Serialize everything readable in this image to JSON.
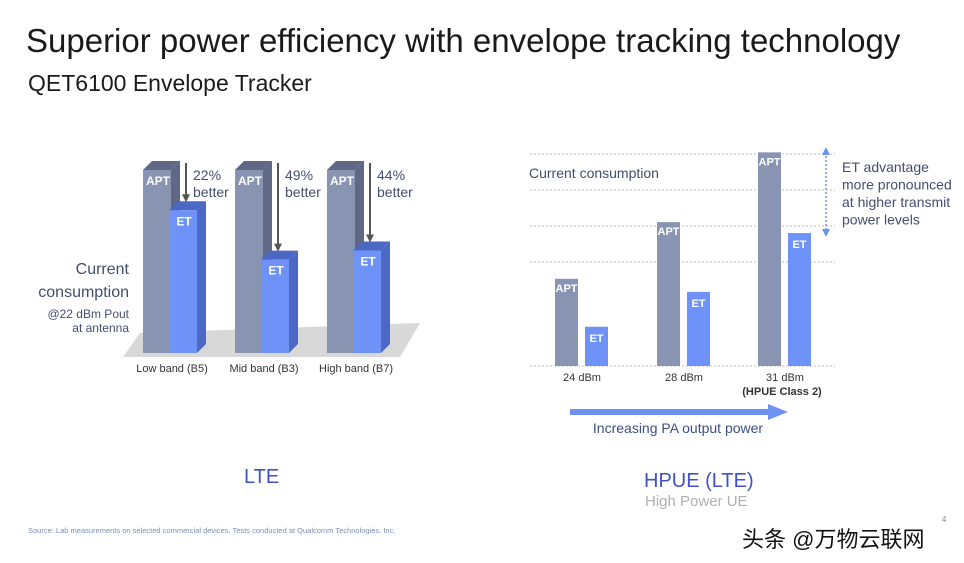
{
  "header": {
    "title": "Superior power efficiency with envelope tracking technology",
    "subtitle": "QET6100 Envelope Tracker"
  },
  "page_number": "4",
  "footer": {
    "source": "Source: Lab measurements on selected commercial devices. Tests conducted at Qualcomm Technologies, Inc.",
    "watermark": "头条 @万物云联网"
  },
  "colors": {
    "apt_front": "#8993b2",
    "apt_side": "#5f6985",
    "et_front": "#6e92f8",
    "et_side": "#4a68c4",
    "label_blue": "#3f52c8",
    "arrow_blue": "#6e92f0"
  },
  "chart_data": [
    {
      "type": "bar",
      "title": "LTE",
      "ylabel": "Current consumption",
      "ylabel_note": "@22 dBm Pout at antenna",
      "categories": [
        "Low band (B5)",
        "Mid band (B3)",
        "High band (B7)"
      ],
      "series": [
        {
          "name": "APT",
          "values": [
            100,
            100,
            100
          ]
        },
        {
          "name": "ET",
          "values": [
            78,
            51,
            56
          ]
        }
      ],
      "annotations": [
        {
          "pct": "22%",
          "text": "better"
        },
        {
          "pct": "49%",
          "text": "better"
        },
        {
          "pct": "44%",
          "text": "better"
        }
      ],
      "ylim": [
        0,
        100
      ]
    },
    {
      "type": "bar",
      "title": "HPUE (LTE)",
      "subtitle": "High Power UE",
      "ylabel": "Current consumption",
      "categories": [
        "24 dBm",
        "28 dBm",
        "31 dBm"
      ],
      "category_note": "(HPUE Class 2)",
      "series": [
        {
          "name": "APT",
          "values": [
            40,
            66,
            98
          ]
        },
        {
          "name": "ET",
          "values": [
            18,
            34,
            61
          ]
        }
      ],
      "ylim": [
        0,
        100
      ],
      "grid": true,
      "annotation": "ET advantage more pronounced at higher transmit power levels",
      "annotation_lines": [
        "ET advantage",
        "more pronounced",
        "at higher transmit",
        "power levels"
      ],
      "xaxis_arrow_label": "Increasing PA output power"
    }
  ]
}
